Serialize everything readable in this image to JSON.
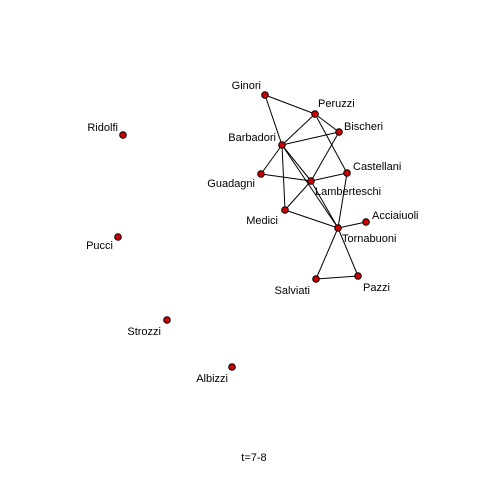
{
  "caption": "t=7-8",
  "style": {
    "edge_color": "#000000",
    "node_fill": "#cc0000",
    "node_stroke": "#000000"
  },
  "nodes": [
    {
      "id": "ginori",
      "label": "Ginori"
    },
    {
      "id": "peruzzi",
      "label": "Peruzzi"
    },
    {
      "id": "bischeri",
      "label": "Bischeri"
    },
    {
      "id": "barbadori",
      "label": "Barbadori"
    },
    {
      "id": "ridolfi",
      "label": "Ridolfi"
    },
    {
      "id": "castellani",
      "label": "Castellani"
    },
    {
      "id": "guadagni",
      "label": "Guadagni"
    },
    {
      "id": "lamberteschi",
      "label": "Lamberteschi"
    },
    {
      "id": "medici",
      "label": "Medici"
    },
    {
      "id": "acciaiuoli",
      "label": "Acciaiuoli"
    },
    {
      "id": "tornabuoni",
      "label": "Tornabuoni"
    },
    {
      "id": "pucci",
      "label": "Pucci"
    },
    {
      "id": "salviati",
      "label": "Salviati"
    },
    {
      "id": "pazzi",
      "label": "Pazzi"
    },
    {
      "id": "strozzi",
      "label": "Strozzi"
    },
    {
      "id": "albizzi",
      "label": "Albizzi"
    }
  ],
  "edges": [
    [
      "ginori",
      "peruzzi"
    ],
    [
      "ginori",
      "barbadori"
    ],
    [
      "peruzzi",
      "bischeri"
    ],
    [
      "peruzzi",
      "barbadori"
    ],
    [
      "peruzzi",
      "castellani"
    ],
    [
      "barbadori",
      "bischeri"
    ],
    [
      "barbadori",
      "guadagni"
    ],
    [
      "barbadori",
      "lamberteschi"
    ],
    [
      "barbadori",
      "medici"
    ],
    [
      "barbadori",
      "tornabuoni"
    ],
    [
      "bischeri",
      "lamberteschi"
    ],
    [
      "castellani",
      "lamberteschi"
    ],
    [
      "castellani",
      "tornabuoni"
    ],
    [
      "guadagni",
      "lamberteschi"
    ],
    [
      "lamberteschi",
      "medici"
    ],
    [
      "lamberteschi",
      "tornabuoni"
    ],
    [
      "medici",
      "tornabuoni"
    ],
    [
      "tornabuoni",
      "acciaiuoli"
    ],
    [
      "tornabuoni",
      "salviati"
    ],
    [
      "tornabuoni",
      "pazzi"
    ],
    [
      "salviati",
      "pazzi"
    ]
  ]
}
